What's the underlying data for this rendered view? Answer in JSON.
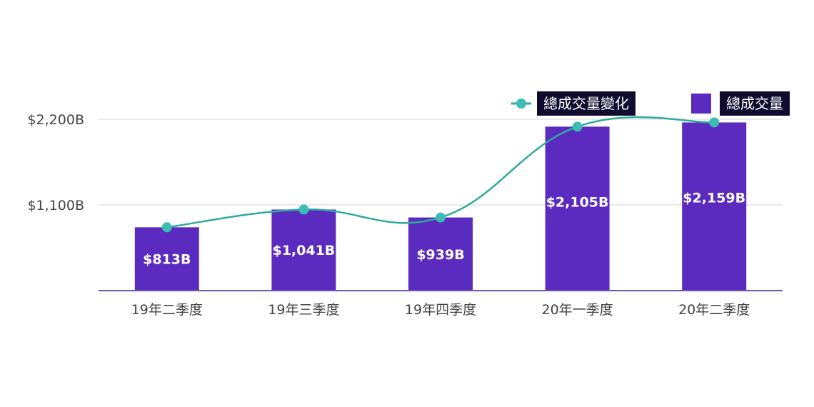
{
  "colors": {
    "bar": "#5b2bbf",
    "line": "#2fa9a0",
    "marker": "#3cbcb3",
    "grid": "#e4e4e4",
    "axis": "#6a5aa8"
  },
  "legend": {
    "line_label": "總成交量變化",
    "bar_label": "總成交量"
  },
  "chart_data": {
    "type": "bar",
    "categories": [
      "19年二季度",
      "19年三季度",
      "19年四季度",
      "20年一季度",
      "20年二季度"
    ],
    "series": [
      {
        "name": "總成交量",
        "type": "bar",
        "values": [
          813,
          1041,
          939,
          2105,
          2159
        ],
        "labels": [
          "$813B",
          "$1,041B",
          "$939B",
          "$2,105B",
          "$2,159B"
        ]
      },
      {
        "name": "總成交量變化",
        "type": "line",
        "values": [
          813,
          1041,
          939,
          2105,
          2159
        ]
      }
    ],
    "y_ticks": [
      1100,
      2200
    ],
    "y_tick_labels": [
      "$1,100B",
      "$2,200B"
    ],
    "ylim": [
      0,
      2420
    ],
    "grid": true,
    "legend_position": "top-right"
  }
}
